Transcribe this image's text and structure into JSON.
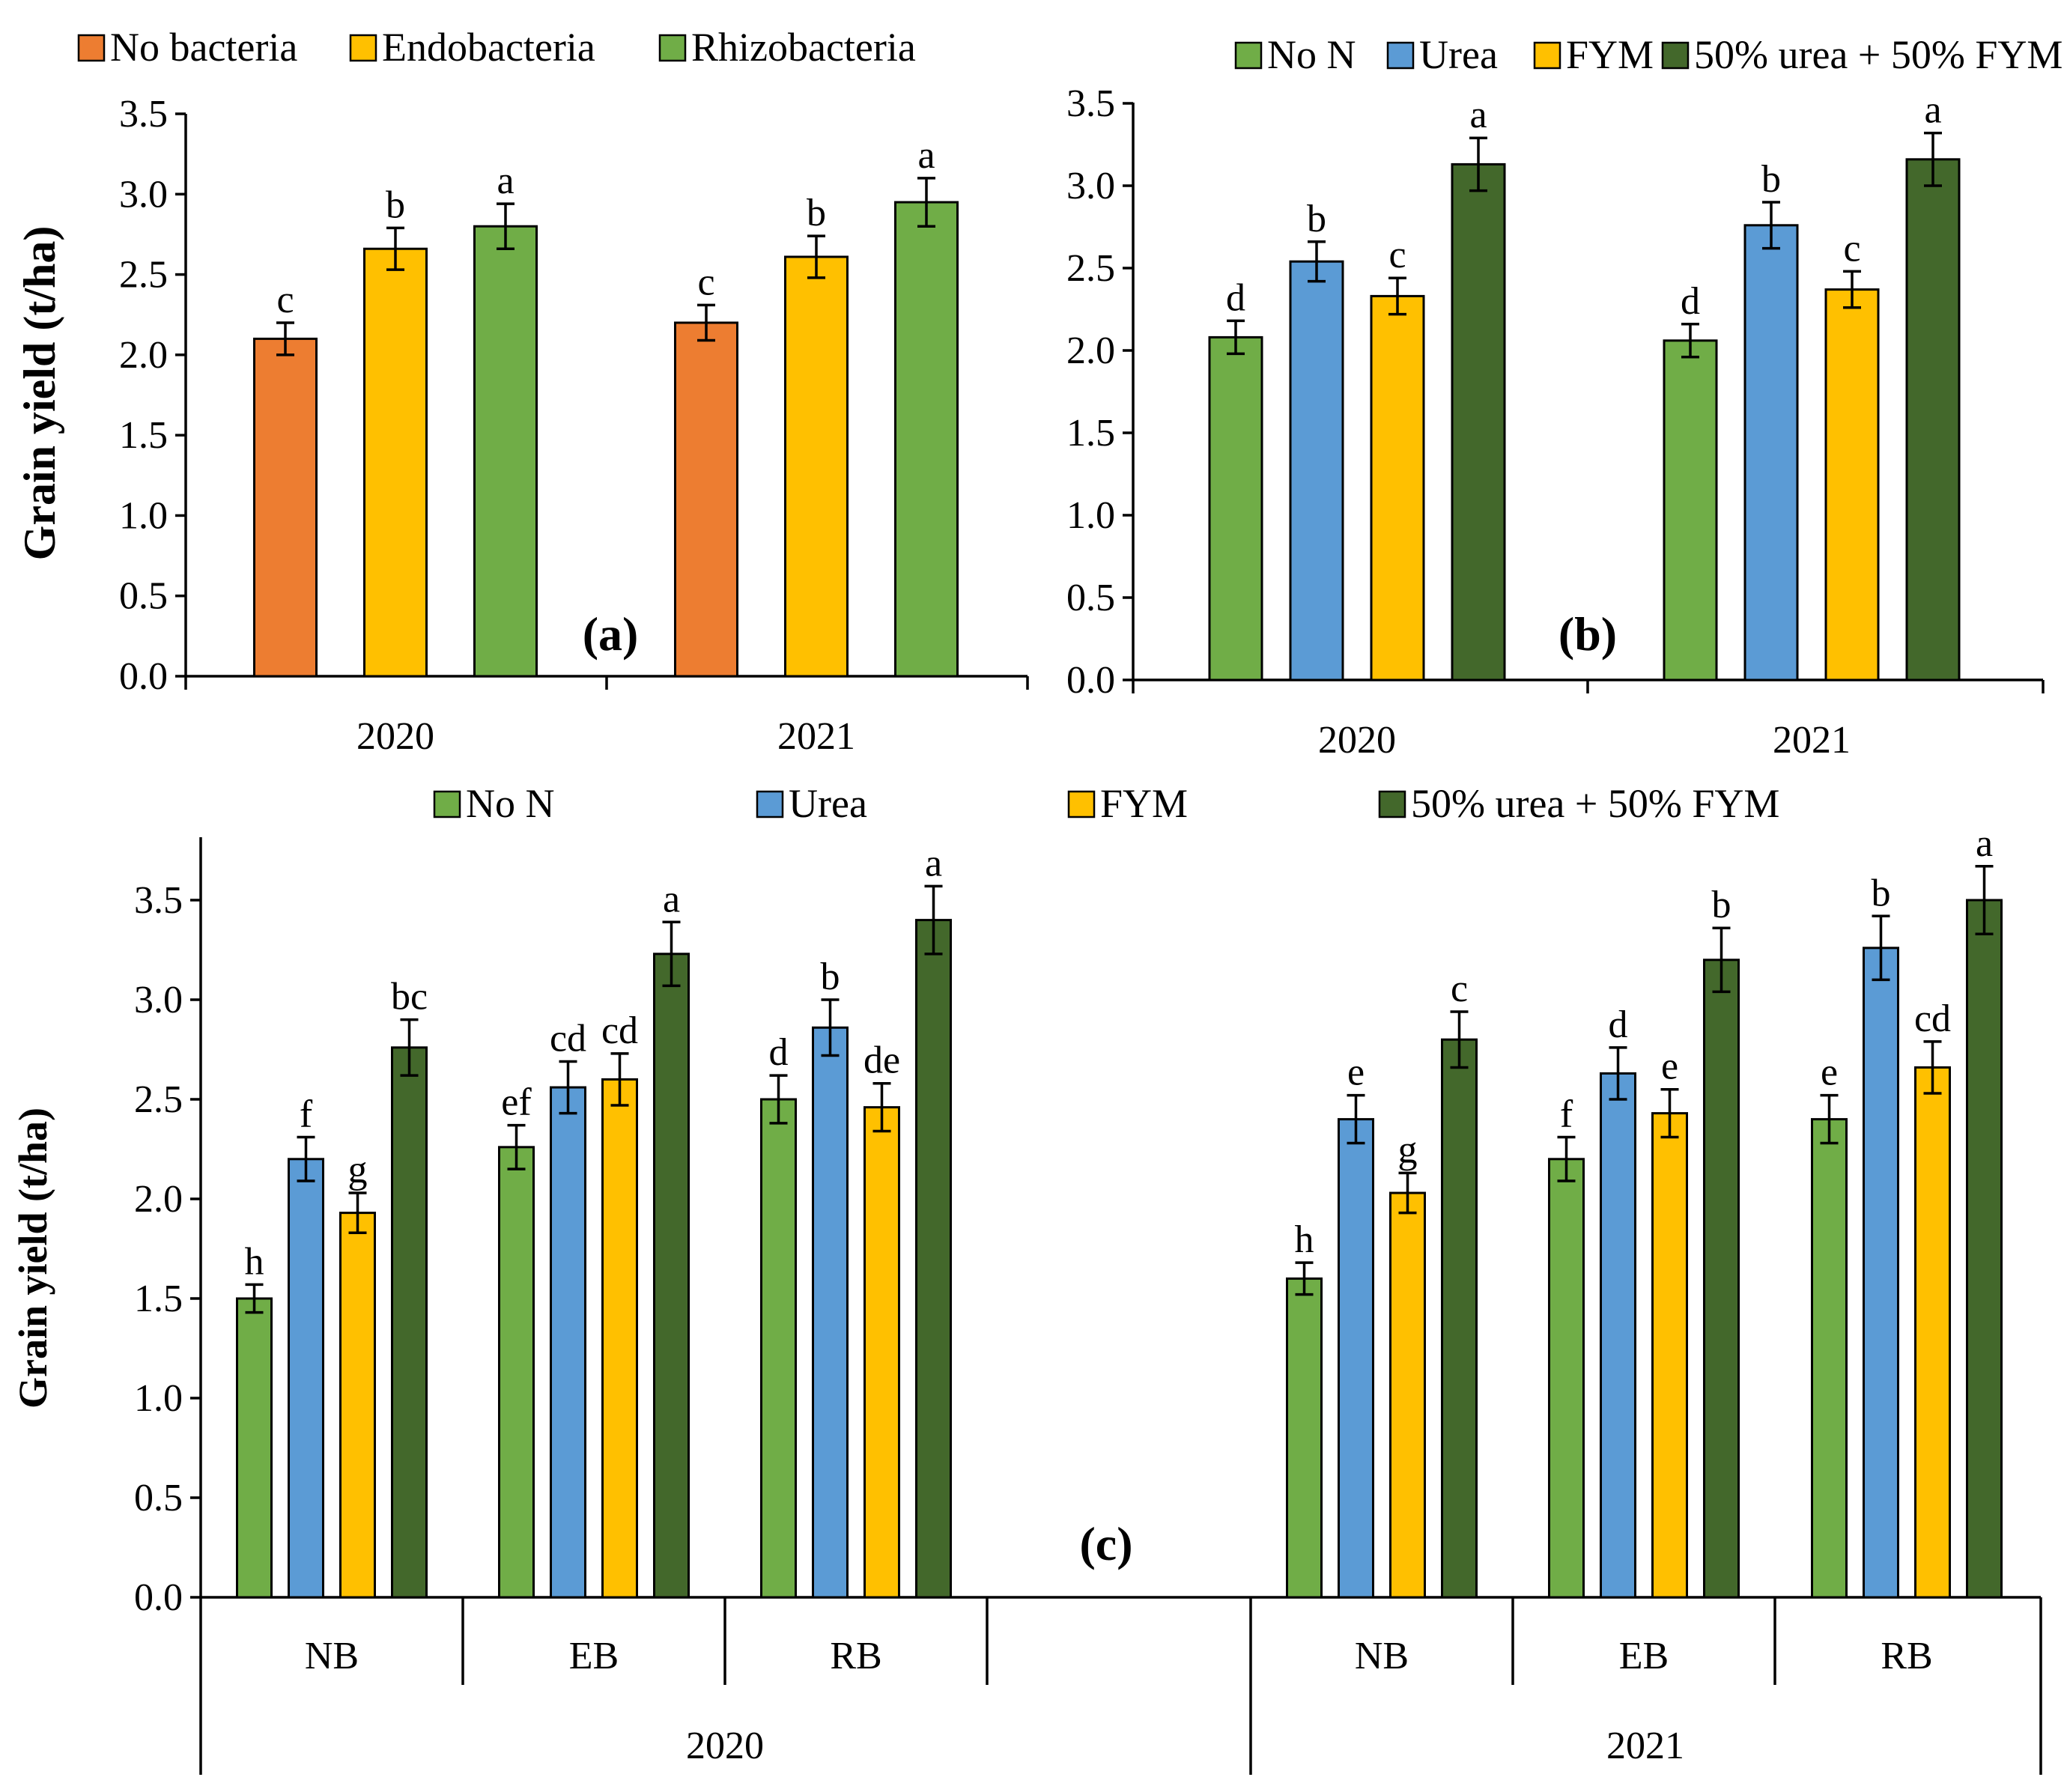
{
  "colors": {
    "no_bacteria": "#ED7D31",
    "endobacteria": "#FFC000",
    "rhizobacteria": "#70AD47",
    "no_n": "#70AD47",
    "urea": "#5B9BD5",
    "fym": "#FFC000",
    "mix": "#43682B"
  },
  "chart_data": [
    {
      "id": "a",
      "type": "bar",
      "panel_label": "(a)",
      "ylabel": "Grain yield (t/ha)",
      "ylim": [
        0,
        3.5
      ],
      "yticks": [
        "0.0",
        "0.5",
        "1.0",
        "1.5",
        "2.0",
        "2.5",
        "3.0",
        "3.5"
      ],
      "legend_position": "top",
      "categories": [
        "2020",
        "2021"
      ],
      "series": [
        {
          "name": "No bacteria",
          "color_key": "no_bacteria",
          "values": [
            2.1,
            2.2
          ],
          "errors": [
            0.1,
            0.11
          ],
          "letters": [
            "c",
            "c"
          ]
        },
        {
          "name": "Endobacteria",
          "color_key": "endobacteria",
          "values": [
            2.66,
            2.61
          ],
          "errors": [
            0.13,
            0.13
          ],
          "letters": [
            "b",
            "b"
          ]
        },
        {
          "name": "Rhizobacteria",
          "color_key": "rhizobacteria",
          "values": [
            2.8,
            2.95
          ],
          "errors": [
            0.14,
            0.15
          ],
          "letters": [
            "a",
            "a"
          ]
        }
      ]
    },
    {
      "id": "b",
      "type": "bar",
      "panel_label": "(b)",
      "ylabel": "",
      "ylim": [
        0,
        3.5
      ],
      "yticks": [
        "0.0",
        "0.5",
        "1.0",
        "1.5",
        "2.0",
        "2.5",
        "3.0",
        "3.5"
      ],
      "legend_position": "top",
      "categories": [
        "2020",
        "2021"
      ],
      "series": [
        {
          "name": "No N",
          "color_key": "no_n",
          "values": [
            2.08,
            2.06
          ],
          "errors": [
            0.1,
            0.1
          ],
          "letters": [
            "d",
            "d"
          ]
        },
        {
          "name": "Urea",
          "color_key": "urea",
          "values": [
            2.54,
            2.76
          ],
          "errors": [
            0.12,
            0.14
          ],
          "letters": [
            "b",
            "b"
          ]
        },
        {
          "name": "FYM",
          "color_key": "fym",
          "values": [
            2.33,
            2.37
          ],
          "errors": [
            0.11,
            0.11
          ],
          "letters": [
            "c",
            "c"
          ]
        },
        {
          "name": "50% urea + 50% FYM",
          "color_key": "mix",
          "values": [
            3.13,
            3.16
          ],
          "errors": [
            0.16,
            0.16
          ],
          "letters": [
            "a",
            "a"
          ]
        }
      ]
    },
    {
      "id": "c",
      "type": "bar",
      "panel_label": "(c)",
      "ylabel": "Grain yield (t/ha)",
      "ylim": [
        0,
        3.8
      ],
      "yticks": [
        "0.0",
        "0.5",
        "1.0",
        "1.5",
        "2.0",
        "2.5",
        "3.0",
        "3.5"
      ],
      "legend_position": "top",
      "groups": [
        "2020",
        "2021"
      ],
      "categories": [
        "NB",
        "EB",
        "RB",
        "NB",
        "EB",
        "RB"
      ],
      "series": [
        {
          "name": "No N",
          "color_key": "no_n",
          "values": [
            1.5,
            2.26,
            2.5,
            1.6,
            2.2,
            2.4
          ],
          "errors": [
            0.07,
            0.11,
            0.12,
            0.08,
            0.11,
            0.12
          ],
          "letters": [
            "h",
            "ef",
            "d",
            "h",
            "f",
            "e"
          ]
        },
        {
          "name": "Urea",
          "color_key": "urea",
          "values": [
            2.2,
            2.56,
            2.86,
            2.4,
            2.63,
            3.26
          ],
          "errors": [
            0.11,
            0.13,
            0.14,
            0.12,
            0.13,
            0.16
          ],
          "letters": [
            "f",
            "cd",
            "b",
            "e",
            "d",
            "b"
          ]
        },
        {
          "name": "FYM",
          "color_key": "fym",
          "values": [
            1.93,
            2.6,
            2.46,
            2.03,
            2.43,
            2.66
          ],
          "errors": [
            0.1,
            0.13,
            0.12,
            0.1,
            0.12,
            0.13
          ],
          "letters": [
            "g",
            "cd",
            "de",
            "g",
            "e",
            "cd"
          ]
        },
        {
          "name": "50% urea + 50% FYM",
          "color_key": "mix",
          "values": [
            2.76,
            3.23,
            3.4,
            2.8,
            3.2,
            3.5
          ],
          "errors": [
            0.14,
            0.16,
            0.17,
            0.14,
            0.16,
            0.17
          ],
          "letters": [
            "bc",
            "a",
            "a",
            "c",
            "b",
            "a"
          ]
        }
      ]
    }
  ]
}
